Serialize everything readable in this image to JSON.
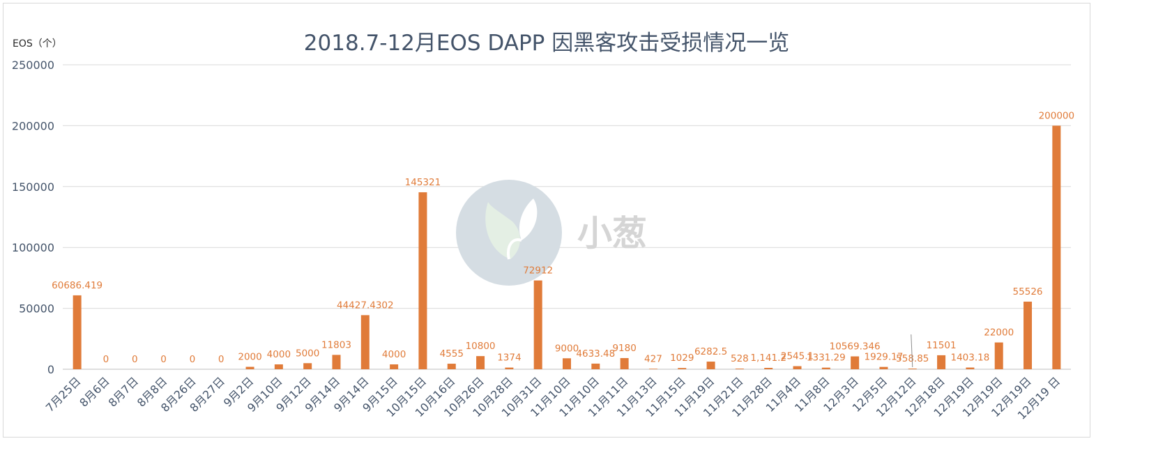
{
  "chart_data": {
    "type": "bar",
    "title": "2018.7-12月EOS DAPP 因黑客攻击受损情况一览",
    "ylabel": "EOS（个）",
    "xlabel": "",
    "ylim": [
      0,
      250000
    ],
    "yticks": [
      0,
      50000,
      100000,
      150000,
      200000,
      250000
    ],
    "grid": true,
    "bar_color": "#e07b39",
    "categories": [
      "7月25日",
      "8月6日",
      "8月7日",
      "8月8日",
      "8月26日",
      "8月27日",
      "9月2日",
      "9月10日",
      "9月12日",
      "9月14日",
      "9月14日",
      "9月15日",
      "10月15日",
      "10月16日",
      "10月26日",
      "10月28日",
      "10月31日",
      "11月10日",
      "11月10日",
      "11月11日",
      "11月13日",
      "11月15日",
      "11月19日",
      "11月21日",
      "11月28日",
      "11月4日",
      "11月8日",
      "12月3日",
      "12月5日",
      "12月12日",
      "12月18日",
      "12月19日",
      "12月19日",
      "12月19日",
      "12月19 日"
    ],
    "values": [
      60686.419,
      0,
      0,
      0,
      0,
      0,
      2000,
      4000,
      5000,
      11803,
      44427.4302,
      4000,
      145321,
      4555,
      10800,
      1374,
      72912,
      9000,
      4633.48,
      9180,
      427,
      1029,
      6282.5,
      528,
      1141.2,
      2545.1,
      1331.29,
      10569.346,
      1929.17,
      558.85,
      11501,
      1403.18,
      22000,
      55526,
      200000
    ],
    "data_labels": [
      "60686.419",
      "0",
      "0",
      "0",
      "0",
      "0",
      "2000",
      "4000",
      "5000",
      "11803",
      "44427.4302",
      "4000",
      "145321",
      "4555",
      "10800",
      "1374",
      "72912",
      "9000",
      "4633.48",
      "9180",
      "427",
      "1029",
      "6282.5",
      "528",
      "1,141.2",
      "2545.1",
      "1331.29",
      "10569.346",
      "1929.17",
      "558.85",
      "11501",
      "1403.18",
      "22000",
      "55526",
      "200000"
    ]
  },
  "watermark": {
    "text": "小葱",
    "colors": {
      "circle": "#d5dde3",
      "leaf_light": "#e4efe4",
      "leaf_white": "#ffffff"
    }
  }
}
